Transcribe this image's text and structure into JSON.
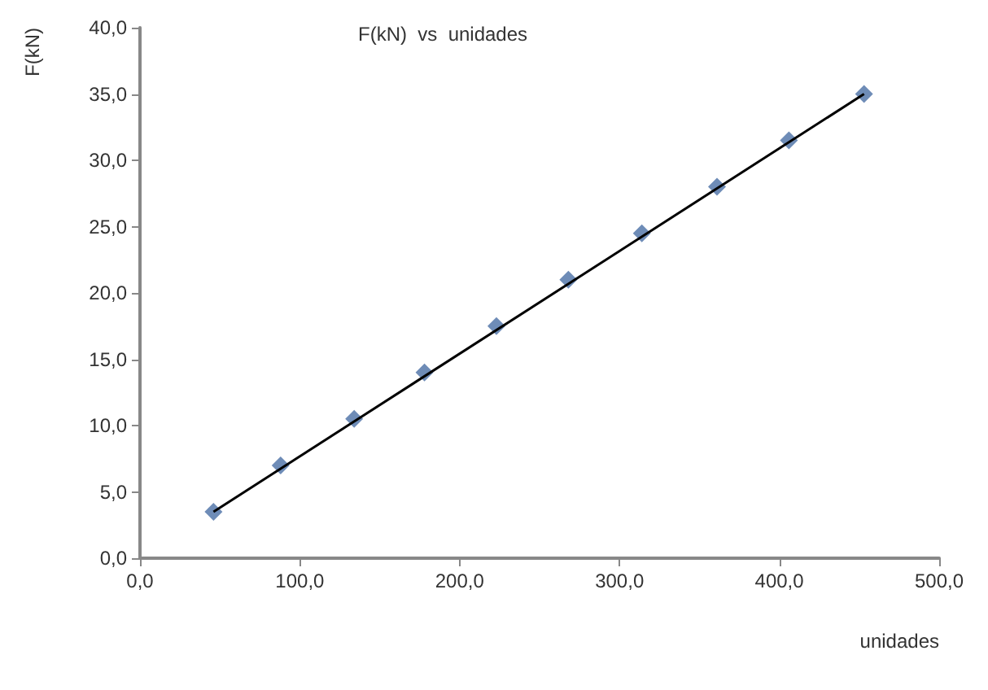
{
  "chart_data": {
    "type": "scatter",
    "title": "F(kN)  vs  unidades",
    "xlabel": "unidades",
    "ylabel": "F(kN)",
    "grid": false,
    "series": [
      {
        "marker": "diamond",
        "color": "#4a6fa5",
        "x": [
          46,
          88,
          134,
          178,
          223,
          268,
          314,
          361,
          406,
          453
        ],
        "values": [
          3.5,
          7.0,
          10.5,
          14.0,
          17.5,
          21.0,
          24.5,
          28.0,
          31.5,
          35.0
        ]
      },
      {
        "type": "line",
        "marker": "none",
        "color": "#000000",
        "x": [
          46,
          453
        ],
        "values": [
          3.5,
          35.0
        ]
      }
    ],
    "xlim": [
      0,
      500
    ],
    "xticks": [
      {
        "value": 0,
        "label": "0,0"
      },
      {
        "value": 100,
        "label": "100,0"
      },
      {
        "value": 200,
        "label": "200,0"
      },
      {
        "value": 300,
        "label": "300,0"
      },
      {
        "value": 400,
        "label": "400,0"
      },
      {
        "value": 500,
        "label": "500,0"
      }
    ],
    "ylim": [
      0,
      40
    ],
    "yticks": [
      {
        "value": 0,
        "label": "0,0"
      },
      {
        "value": 5,
        "label": "5,0"
      },
      {
        "value": 10,
        "label": "10,0"
      },
      {
        "value": 15,
        "label": "15,0"
      },
      {
        "value": 20,
        "label": "20,0"
      },
      {
        "value": 25,
        "label": "25,0"
      },
      {
        "value": 30,
        "label": "30,0"
      },
      {
        "value": 35,
        "label": "35,0"
      },
      {
        "value": 40,
        "label": "40,0"
      }
    ]
  }
}
